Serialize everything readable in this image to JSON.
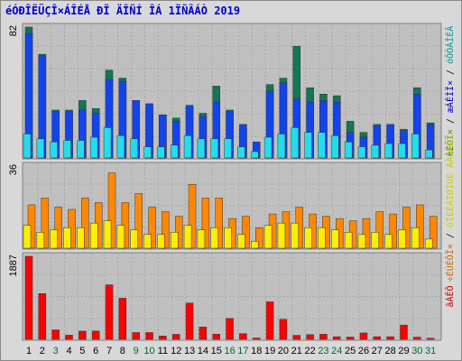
{
  "title": "éÓÐÎËÜÇÎ×ÁÎÉÅ ÐÏ ÄÎÑÍ ÎÁ 1ÏÑÂÁÒ 2019",
  "colors": {
    "frame_bg": "#d8d8d8",
    "plot_bg": "#c0c0c0",
    "grid": "#a8a8a8",
    "panel_border": "#808080",
    "title": "#0000cc"
  },
  "chart_data": [
    {
      "type": "bar",
      "panel": "top",
      "ymax_label": "82",
      "ylim": [
        0,
        82
      ],
      "right_label_parts": [
        {
          "text": "èÉÔÏ×",
          "color": "#006633"
        },
        {
          "text": " / ",
          "color": "#000000"
        },
        {
          "text": "æÁÊÌÏ×",
          "color": "#0000cc"
        },
        {
          "text": " / ",
          "color": "#000000"
        },
        {
          "text": "óÔÒÁÎÉÃ",
          "color": "#009999"
        }
      ],
      "categories": [
        "1",
        "2",
        "3",
        "4",
        "5",
        "6",
        "7",
        "8",
        "9",
        "10",
        "11",
        "12",
        "13",
        "14",
        "15",
        "16",
        "17",
        "18",
        "19",
        "20",
        "21",
        "22",
        "23",
        "24",
        "25",
        "26",
        "27",
        "28",
        "29",
        "30",
        "31"
      ],
      "series": [
        {
          "color": "#117755",
          "values": [
            82,
            65,
            30,
            30,
            36,
            31,
            55,
            50,
            36,
            31,
            27,
            25,
            32,
            28,
            45,
            30,
            18,
            10,
            46,
            50,
            70,
            44,
            40,
            39,
            23,
            16,
            21,
            21,
            18,
            44,
            22
          ]
        },
        {
          "color": "#1144ee",
          "values": [
            78,
            64,
            29,
            29,
            30,
            28,
            49,
            48,
            36,
            34,
            27,
            23,
            33,
            26,
            35,
            29,
            21,
            10,
            42,
            47,
            37,
            35,
            36,
            35,
            16,
            13,
            20,
            21,
            17,
            40,
            21
          ]
        },
        {
          "color": "#22ddee",
          "values": [
            15,
            12,
            10,
            11,
            11,
            13,
            19,
            14,
            12,
            7,
            7,
            8,
            14,
            12,
            12,
            12,
            7,
            4,
            13,
            15,
            19,
            16,
            16,
            14,
            10,
            7,
            8,
            9,
            9,
            15,
            5
          ]
        }
      ]
    },
    {
      "type": "bar",
      "panel": "middle",
      "ymax_label": "36",
      "ylim": [
        0,
        36
      ],
      "right_label_parts": [
        {
          "text": "÷ÉÚÉÔÏ×",
          "color": "#cc6600"
        },
        {
          "text": " / ",
          "color": "#000000"
        },
        {
          "text": "õÎÉËÁÌØÎÙÈ ÁÄÒÅÓÏ×",
          "color": "#cccc00"
        }
      ],
      "categories": [
        "1",
        "2",
        "3",
        "4",
        "5",
        "6",
        "7",
        "8",
        "9",
        "10",
        "11",
        "12",
        "13",
        "14",
        "15",
        "16",
        "17",
        "18",
        "19",
        "20",
        "21",
        "22",
        "23",
        "24",
        "25",
        "26",
        "27",
        "28",
        "29",
        "30",
        "31"
      ],
      "series": [
        {
          "color": "#ff8800",
          "values": [
            19,
            22,
            18,
            17,
            22,
            20,
            33,
            20,
            24,
            18,
            16,
            14,
            28,
            22,
            22,
            13,
            14,
            9,
            15,
            16,
            18,
            15,
            14,
            13,
            12,
            13,
            16,
            15,
            18,
            19,
            14
          ]
        },
        {
          "color": "#ffee00",
          "values": [
            10,
            7,
            8,
            9,
            9,
            11,
            12,
            10,
            8,
            6,
            6,
            7,
            10,
            8,
            9,
            9,
            6,
            3,
            10,
            11,
            11,
            9,
            9,
            8,
            7,
            6,
            7,
            6,
            8,
            9,
            4
          ]
        }
      ]
    },
    {
      "type": "bar",
      "panel": "bottom",
      "ymax_label": "1887",
      "ylim": [
        0,
        1887
      ],
      "right_label_parts": [
        {
          "text": "âÁÊÔ",
          "color": "#cc0000"
        }
      ],
      "categories": [
        "1",
        "2",
        "3",
        "4",
        "5",
        "6",
        "7",
        "8",
        "9",
        "10",
        "11",
        "12",
        "13",
        "14",
        "15",
        "16",
        "17",
        "18",
        "19",
        "20",
        "21",
        "22",
        "23",
        "24",
        "25",
        "26",
        "27",
        "28",
        "29",
        "30",
        "31"
      ],
      "series": [
        {
          "color": "#ff0000",
          "values": [
            1887,
            1040,
            215,
            95,
            186,
            190,
            1240,
            935,
            155,
            155,
            76,
            114,
            826,
            280,
            117,
            474,
            130,
            30,
            852,
            455,
            92,
            107,
            115,
            60,
            52,
            146,
            60,
            60,
            324,
            50,
            25
          ]
        }
      ]
    }
  ],
  "x_labels": [
    {
      "text": "1",
      "color": "#000000"
    },
    {
      "text": "2",
      "color": "#000000"
    },
    {
      "text": "3",
      "color": "#006633"
    },
    {
      "text": "4",
      "color": "#000000"
    },
    {
      "text": "5",
      "color": "#000000"
    },
    {
      "text": "6",
      "color": "#000000"
    },
    {
      "text": "7",
      "color": "#000000"
    },
    {
      "text": "8",
      "color": "#000000"
    },
    {
      "text": "9",
      "color": "#006633"
    },
    {
      "text": "10",
      "color": "#006633"
    },
    {
      "text": "11",
      "color": "#000000"
    },
    {
      "text": "12",
      "color": "#000000"
    },
    {
      "text": "13",
      "color": "#000000"
    },
    {
      "text": "14",
      "color": "#000000"
    },
    {
      "text": "15",
      "color": "#000000"
    },
    {
      "text": "16",
      "color": "#006633"
    },
    {
      "text": "17",
      "color": "#006633"
    },
    {
      "text": "18",
      "color": "#000000"
    },
    {
      "text": "19",
      "color": "#000000"
    },
    {
      "text": "20",
      "color": "#000000"
    },
    {
      "text": "21",
      "color": "#000000"
    },
    {
      "text": "22",
      "color": "#000000"
    },
    {
      "text": "23",
      "color": "#006633"
    },
    {
      "text": "24",
      "color": "#006633"
    },
    {
      "text": "25",
      "color": "#000000"
    },
    {
      "text": "26",
      "color": "#000000"
    },
    {
      "text": "27",
      "color": "#000000"
    },
    {
      "text": "28",
      "color": "#000000"
    },
    {
      "text": "29",
      "color": "#000000"
    },
    {
      "text": "30",
      "color": "#006633"
    },
    {
      "text": "31",
      "color": "#006633"
    }
  ]
}
